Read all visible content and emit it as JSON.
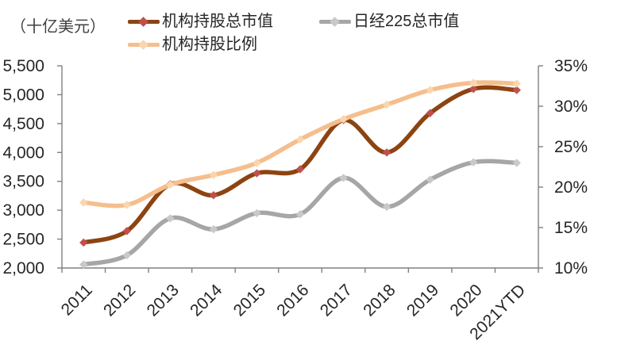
{
  "unit_label": "（十亿美元）",
  "legend": {
    "items": [
      {
        "label": "机构持股总市值",
        "line_color": "#8C4411",
        "marker_color": "#C0504D"
      },
      {
        "label": "日经225总市值",
        "line_color": "#A6A6A6",
        "marker_color": "#C9C9C9"
      },
      {
        "label": "机构持股比例",
        "line_color": "#F5BE8D",
        "marker_color": "#FAD6AE"
      }
    ]
  },
  "colors": {
    "axis": "#808080",
    "tick_text": "#262626",
    "background": "#FFFFFF"
  },
  "chart_data": {
    "type": "line",
    "smooth": true,
    "grid": false,
    "legend_position": "top",
    "title": "",
    "left_axis_unit": "十亿美元",
    "categories": [
      "2011",
      "2012",
      "2013",
      "2014",
      "2015",
      "2016",
      "2017",
      "2018",
      "2019",
      "2020",
      "2021YTD"
    ],
    "series": [
      {
        "name": "机构持股总市值",
        "axis": "left",
        "color": "#8C4411",
        "marker_color": "#C0504D",
        "values": [
          2440,
          2640,
          3450,
          3260,
          3640,
          3710,
          4560,
          4000,
          4680,
          5100,
          5080
        ]
      },
      {
        "name": "日经225总市值",
        "axis": "left",
        "color": "#A6A6A6",
        "marker_color": "#C9C9C9",
        "values": [
          2060,
          2220,
          2860,
          2670,
          2950,
          2930,
          3560,
          3060,
          3530,
          3830,
          3820
        ]
      },
      {
        "name": "机构持股比例",
        "axis": "right",
        "color": "#F5BE8D",
        "marker_color": "#FAD6AE",
        "values": [
          18.1,
          17.8,
          20.3,
          21.5,
          23.0,
          25.9,
          28.4,
          30.2,
          32.0,
          32.9,
          32.8
        ]
      }
    ],
    "left_axis": {
      "min": 2000,
      "max": 5500,
      "step": 500,
      "tick_labels": [
        "2,000",
        "2,500",
        "3,000",
        "3,500",
        "4,000",
        "4,500",
        "5,000",
        "5,500"
      ]
    },
    "right_axis": {
      "min": 10,
      "max": 35,
      "step": 5,
      "tick_labels": [
        "10%",
        "15%",
        "20%",
        "25%",
        "30%",
        "35%"
      ]
    }
  }
}
